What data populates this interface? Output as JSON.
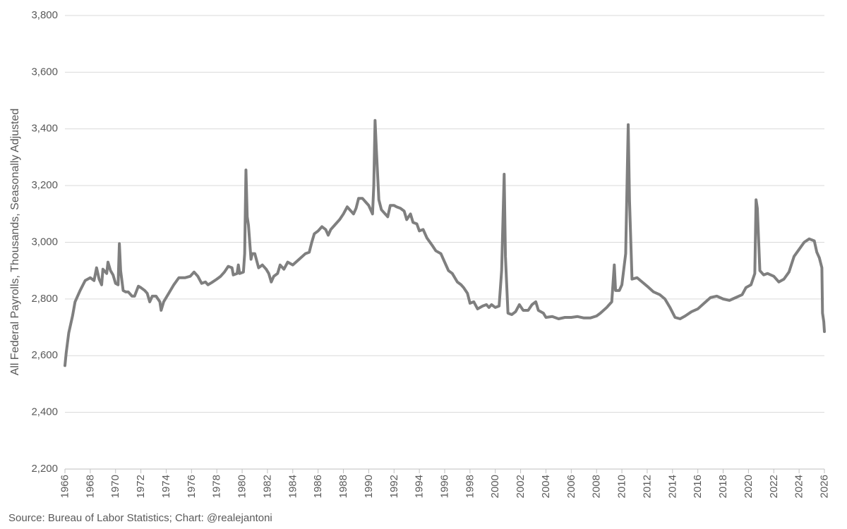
{
  "chart_data": {
    "type": "line",
    "y_label": "All Federal Payrolls, Thousands, Seasonally Adjusted",
    "source": "Source: Bureau of Labor Statistics; Chart: @realejantoni",
    "color": "#7f7f7f",
    "grid": true,
    "xlim": [
      1966,
      2026
    ],
    "xticks": [
      1966,
      1968,
      1970,
      1972,
      1974,
      1976,
      1978,
      1980,
      1982,
      1984,
      1986,
      1988,
      1990,
      1992,
      1994,
      1996,
      1998,
      2000,
      2002,
      2004,
      2006,
      2008,
      2010,
      2012,
      2014,
      2016,
      2018,
      2020,
      2022,
      2024,
      2026
    ],
    "ylim": [
      2200,
      3800
    ],
    "yticks": [
      {
        "value": 2200,
        "label": "2,200"
      },
      {
        "value": 2400,
        "label": "2,400"
      },
      {
        "value": 2600,
        "label": "2,600"
      },
      {
        "value": 2800,
        "label": "2,800"
      },
      {
        "value": 3000,
        "label": "3,000"
      },
      {
        "value": 3200,
        "label": "3,200"
      },
      {
        "value": 3400,
        "label": "3,400"
      },
      {
        "value": 3600,
        "label": "3,600"
      },
      {
        "value": 3800,
        "label": "3,800"
      }
    ],
    "x": [
      1966.0,
      1966.1,
      1966.3,
      1966.6,
      1966.8,
      1967.2,
      1967.6,
      1968.0,
      1968.3,
      1968.5,
      1968.7,
      1968.9,
      1969.0,
      1969.3,
      1969.4,
      1969.6,
      1969.8,
      1970.0,
      1970.2,
      1970.3,
      1970.4,
      1970.6,
      1970.8,
      1971.0,
      1971.3,
      1971.5,
      1971.8,
      1972.0,
      1972.3,
      1972.5,
      1972.7,
      1972.9,
      1973.2,
      1973.5,
      1973.6,
      1973.8,
      1974.2,
      1974.6,
      1975.0,
      1975.5,
      1975.9,
      1976.2,
      1976.5,
      1976.8,
      1977.1,
      1977.3,
      1977.6,
      1978.0,
      1978.3,
      1978.6,
      1978.9,
      1979.2,
      1979.3,
      1979.6,
      1979.7,
      1979.8,
      1980.1,
      1980.2,
      1980.3,
      1980.4,
      1980.5,
      1980.7,
      1980.8,
      1981.0,
      1981.3,
      1981.6,
      1981.9,
      1982.1,
      1982.3,
      1982.5,
      1982.8,
      1983.0,
      1983.3,
      1983.6,
      1984.0,
      1984.5,
      1985.0,
      1985.3,
      1985.5,
      1985.7,
      1986.0,
      1986.3,
      1986.6,
      1986.8,
      1987.0,
      1987.3,
      1987.7,
      1988.0,
      1988.3,
      1988.6,
      1988.8,
      1989.0,
      1989.2,
      1989.5,
      1989.8,
      1990.0,
      1990.2,
      1990.3,
      1990.4,
      1990.5,
      1990.6,
      1990.8,
      1991.0,
      1991.3,
      1991.5,
      1991.7,
      1992.0,
      1992.2,
      1992.5,
      1992.8,
      1993.0,
      1993.3,
      1993.5,
      1993.8,
      1994.0,
      1994.3,
      1994.6,
      1995.0,
      1995.3,
      1995.7,
      1996.0,
      1996.3,
      1996.6,
      1997.0,
      1997.3,
      1997.5,
      1997.8,
      1998.0,
      1998.3,
      1998.6,
      1999.0,
      1999.3,
      1999.5,
      1999.7,
      2000.0,
      2000.3,
      2000.5,
      2000.7,
      2000.8,
      2001.0,
      2001.3,
      2001.6,
      2001.9,
      2002.2,
      2002.6,
      2002.9,
      2003.2,
      2003.4,
      2003.8,
      2004.0,
      2004.5,
      2005.0,
      2005.5,
      2006.0,
      2006.5,
      2007.0,
      2007.5,
      2008.0,
      2008.3,
      2008.8,
      2009.2,
      2009.4,
      2009.5,
      2009.8,
      2010.0,
      2010.3,
      2010.5,
      2010.6,
      2010.8,
      2011.2,
      2011.6,
      2012.0,
      2012.5,
      2013.0,
      2013.4,
      2013.8,
      2014.2,
      2014.6,
      2015.0,
      2015.5,
      2016.0,
      2016.5,
      2017.0,
      2017.5,
      2018.0,
      2018.5,
      2019.0,
      2019.5,
      2019.8,
      2020.2,
      2020.5,
      2020.6,
      2020.7,
      2020.9,
      2021.2,
      2021.5,
      2022.0,
      2022.4,
      2022.8,
      2023.2,
      2023.6,
      2024.0,
      2024.4,
      2024.8,
      2025.2,
      2025.4,
      2025.6,
      2025.8,
      2025.85,
      2025.95,
      2026.0
    ],
    "values": [
      2565,
      2610,
      2680,
      2740,
      2790,
      2830,
      2865,
      2875,
      2865,
      2910,
      2870,
      2850,
      2905,
      2890,
      2930,
      2900,
      2885,
      2855,
      2850,
      2995,
      2900,
      2830,
      2825,
      2825,
      2810,
      2810,
      2845,
      2840,
      2830,
      2820,
      2790,
      2810,
      2810,
      2790,
      2760,
      2790,
      2820,
      2850,
      2875,
      2875,
      2880,
      2895,
      2880,
      2855,
      2860,
      2850,
      2858,
      2870,
      2880,
      2895,
      2915,
      2910,
      2885,
      2890,
      2920,
      2890,
      2895,
      2960,
      3255,
      3090,
      3060,
      2940,
      2960,
      2960,
      2910,
      2920,
      2905,
      2890,
      2860,
      2880,
      2890,
      2920,
      2905,
      2930,
      2920,
      2940,
      2960,
      2965,
      3000,
      3030,
      3040,
      3055,
      3045,
      3025,
      3045,
      3060,
      3080,
      3100,
      3125,
      3110,
      3100,
      3120,
      3155,
      3155,
      3140,
      3130,
      3110,
      3100,
      3200,
      3430,
      3330,
      3150,
      3115,
      3100,
      3090,
      3130,
      3130,
      3125,
      3120,
      3110,
      3080,
      3100,
      3070,
      3065,
      3040,
      3045,
      3015,
      2990,
      2970,
      2960,
      2930,
      2900,
      2890,
      2860,
      2850,
      2840,
      2820,
      2785,
      2790,
      2765,
      2775,
      2780,
      2770,
      2780,
      2770,
      2775,
      2900,
      3240,
      2950,
      2750,
      2745,
      2755,
      2780,
      2760,
      2760,
      2780,
      2790,
      2760,
      2750,
      2735,
      2738,
      2730,
      2735,
      2735,
      2738,
      2733,
      2733,
      2740,
      2750,
      2770,
      2790,
      2920,
      2830,
      2830,
      2850,
      2960,
      3415,
      3150,
      2870,
      2875,
      2860,
      2845,
      2825,
      2815,
      2800,
      2770,
      2735,
      2730,
      2740,
      2755,
      2765,
      2785,
      2805,
      2810,
      2800,
      2795,
      2805,
      2815,
      2840,
      2850,
      2890,
      3150,
      3120,
      2900,
      2885,
      2890,
      2880,
      2860,
      2870,
      2895,
      2950,
      2975,
      3000,
      3012,
      3005,
      2965,
      2945,
      2910,
      2750,
      2720,
      2685
    ]
  }
}
